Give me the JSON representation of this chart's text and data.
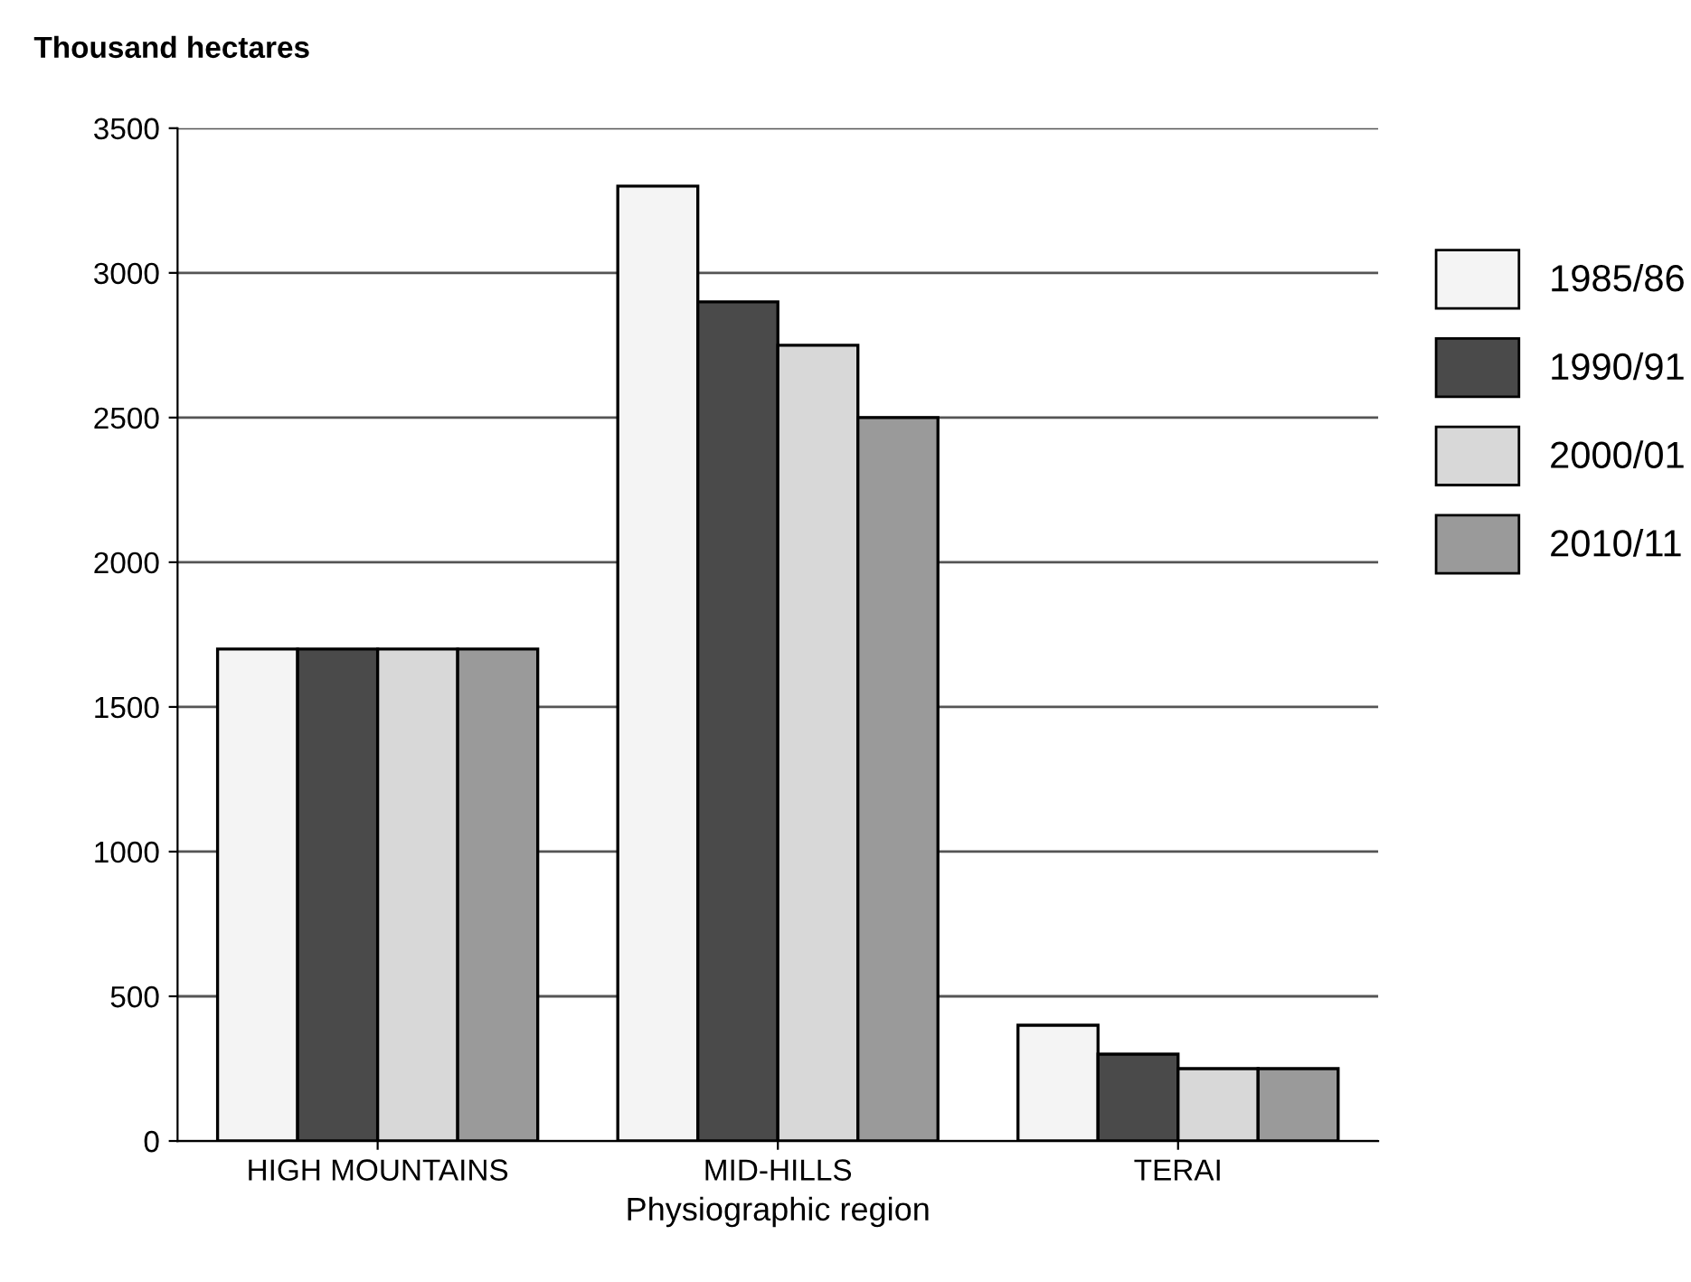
{
  "chart_data": {
    "type": "bar",
    "ylabel": "Thousand hectares",
    "xlabel": "Physiographic region",
    "categories": [
      "HIGH MOUNTAINS",
      "MID-HILLS",
      "TERAI"
    ],
    "series": [
      {
        "name": "1985/86",
        "color": "#f4f4f4",
        "values": [
          1700,
          3300,
          400
        ]
      },
      {
        "name": "1990/91",
        "color": "#4a4a4a",
        "values": [
          1700,
          2900,
          300
        ]
      },
      {
        "name": "2000/01",
        "color": "#d8d8d8",
        "values": [
          1700,
          2750,
          250
        ]
      },
      {
        "name": "2010/11",
        "color": "#9a9a9a",
        "values": [
          1700,
          2500,
          250
        ]
      }
    ],
    "ylim": [
      0,
      3500
    ],
    "yticks": [
      0,
      500,
      1000,
      1500,
      2000,
      2500,
      3000,
      3500
    ],
    "grid": "y",
    "legend": "right"
  }
}
